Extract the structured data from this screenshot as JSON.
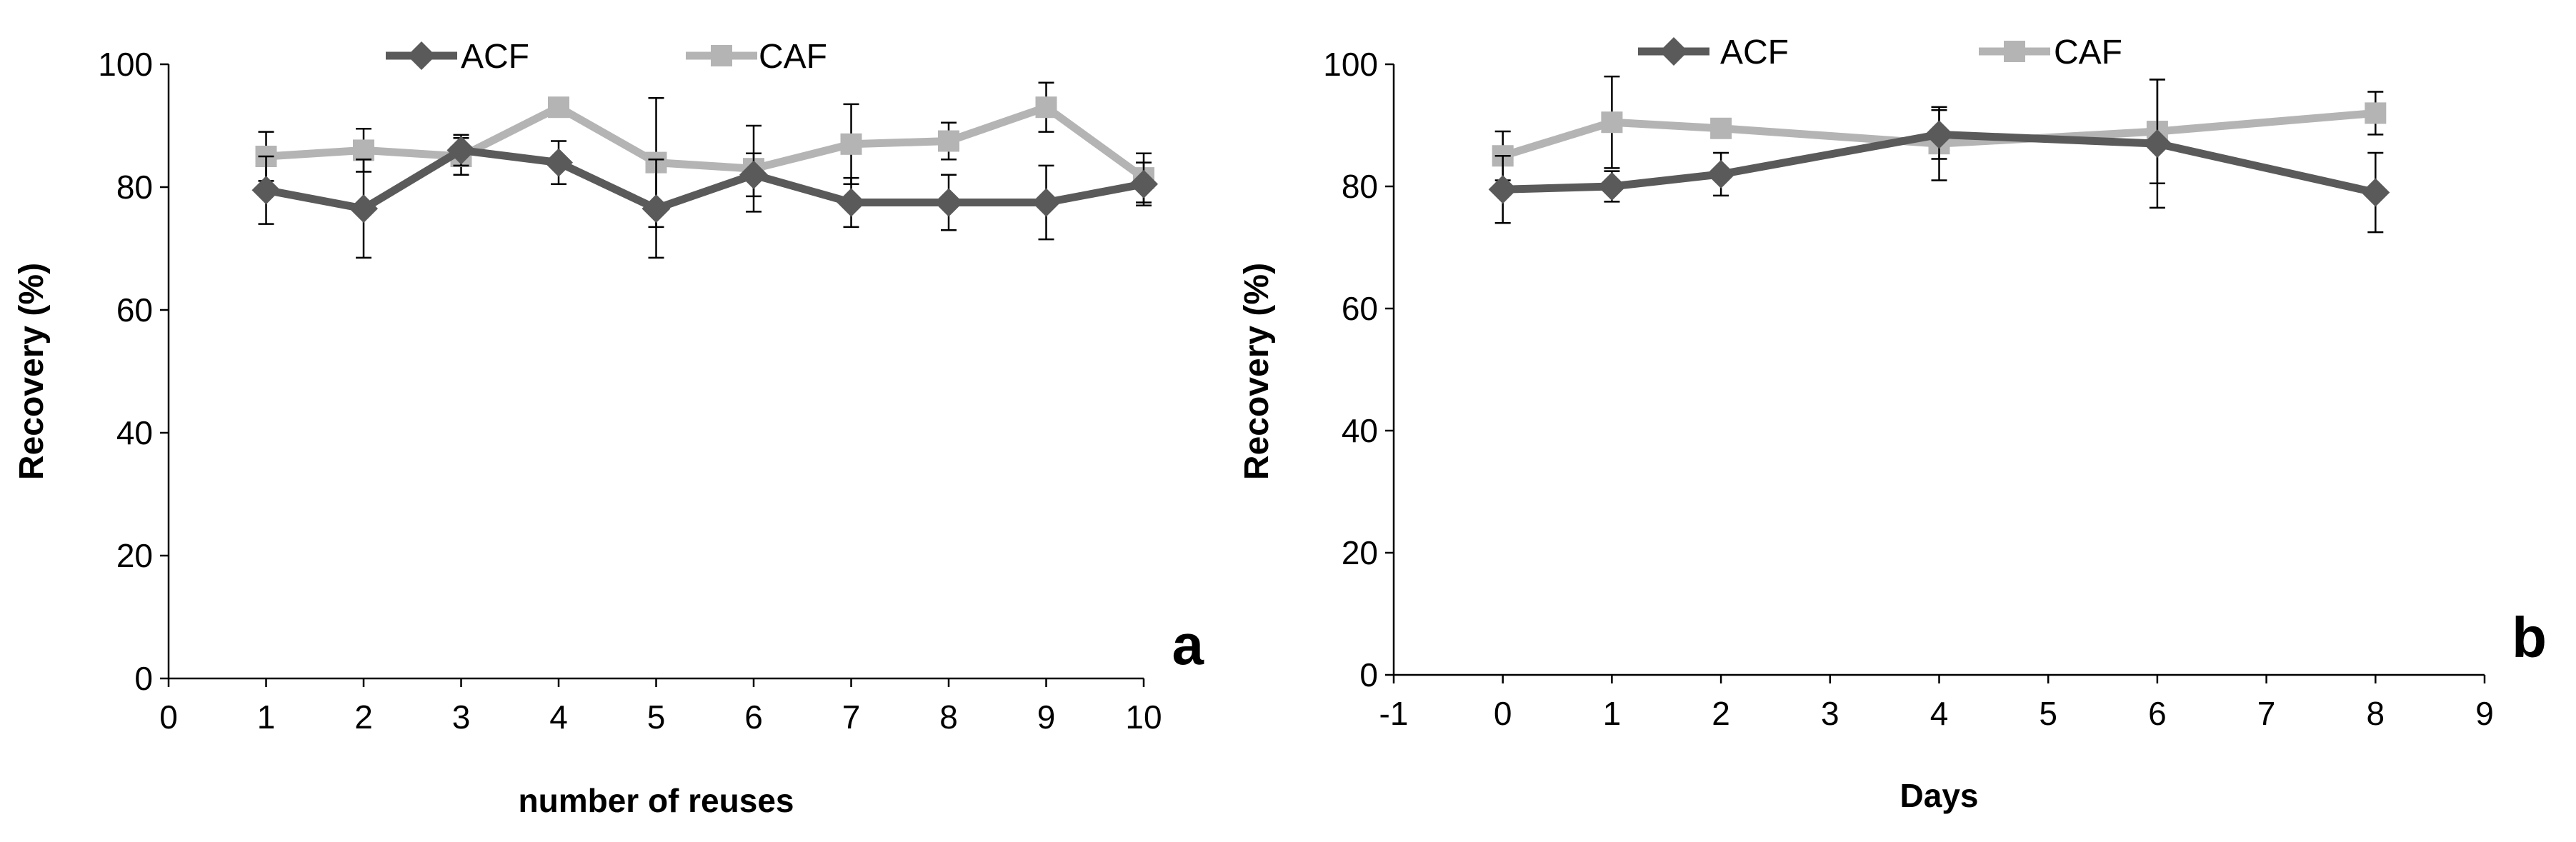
{
  "chart_data": [
    {
      "type": "line",
      "panel_label": "a",
      "title": "",
      "xlabel": "number of reuses",
      "ylabel": "Recovery (%)",
      "xlim": [
        0,
        10
      ],
      "ylim": [
        0,
        100
      ],
      "x_ticks": [
        0,
        1,
        2,
        3,
        4,
        5,
        6,
        7,
        8,
        9,
        10
      ],
      "y_ticks": [
        0,
        20,
        40,
        60,
        80,
        100
      ],
      "legend_position": "top",
      "grid": false,
      "series": [
        {
          "name": "ACF",
          "marker": "diamond",
          "color": "#5a5a5a",
          "x": [
            1,
            2,
            3,
            4,
            5,
            6,
            7,
            8,
            9,
            10
          ],
          "values": [
            79.5,
            76.5,
            86,
            84,
            76.5,
            82,
            77.5,
            77.5,
            77.5,
            80.5
          ],
          "errors": [
            5.5,
            8,
            2.5,
            3.5,
            8,
            3.5,
            4,
            4.5,
            6,
            3.5
          ]
        },
        {
          "name": "CAF",
          "marker": "square",
          "color": "#b4b4b4",
          "x": [
            1,
            2,
            3,
            4,
            5,
            6,
            7,
            8,
            9,
            10
          ],
          "values": [
            85,
            86,
            85,
            93,
            84,
            83,
            87,
            87.5,
            93,
            81.5
          ],
          "errors": [
            4,
            3.5,
            3,
            1.5,
            10.5,
            7,
            6.5,
            3,
            4,
            4
          ]
        }
      ]
    },
    {
      "type": "line",
      "panel_label": "b",
      "title": "",
      "xlabel": "Days",
      "ylabel": "Recovery (%)",
      "xlim": [
        -1,
        9
      ],
      "ylim": [
        0,
        100
      ],
      "x_ticks": [
        -1,
        0,
        1,
        2,
        3,
        4,
        5,
        6,
        7,
        8,
        9
      ],
      "y_ticks": [
        0,
        20,
        40,
        60,
        80,
        100
      ],
      "legend_position": "top",
      "grid": false,
      "series": [
        {
          "name": "ACF",
          "marker": "diamond",
          "color": "#5a5a5a",
          "x": [
            0,
            1,
            2,
            4,
            6,
            8
          ],
          "values": [
            79.5,
            80,
            82,
            88.5,
            87,
            79
          ],
          "errors": [
            5.5,
            2.5,
            3.5,
            4,
            10.5,
            6.5
          ]
        },
        {
          "name": "CAF",
          "marker": "square",
          "color": "#b4b4b4",
          "x": [
            0,
            1,
            2,
            4,
            6,
            8
          ],
          "values": [
            85,
            90.5,
            89.5,
            87,
            89,
            92
          ],
          "errors": [
            4,
            7.5,
            1.5,
            6,
            8.5,
            3.5
          ]
        }
      ]
    }
  ]
}
